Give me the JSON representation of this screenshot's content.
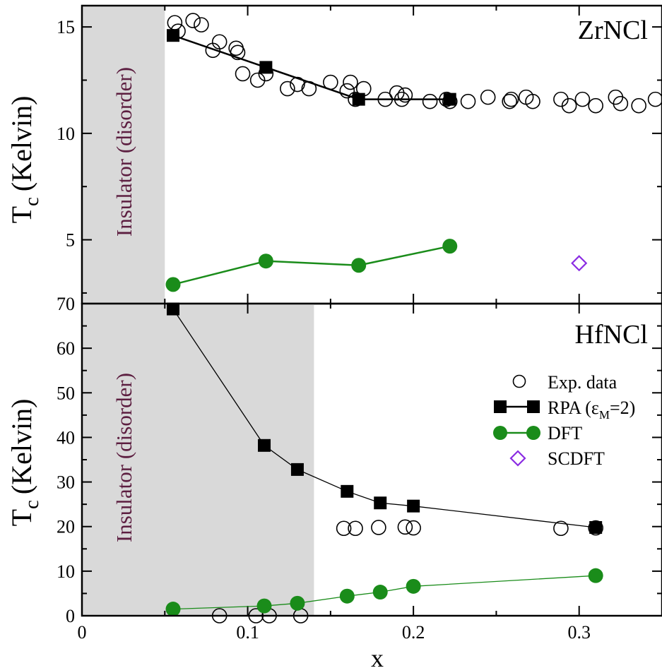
{
  "chart_data": [
    {
      "type": "scatter",
      "panel_label": "ZrNCl",
      "region_label": "Insulator (disorder)",
      "insulator_x_max": 0.05,
      "ylabel_main": "T",
      "ylabel_sub": "c",
      "ylabel_unit": "(Kelvin)",
      "xlim": [
        0,
        0.35
      ],
      "ylim": [
        2,
        16
      ],
      "yticks": [
        {
          "v": 5,
          "label": "5"
        },
        {
          "v": 10,
          "label": "10"
        },
        {
          "v": 15,
          "label": "15"
        }
      ],
      "series": [
        {
          "key": "exp",
          "marker": "open-circle",
          "color": "#000000",
          "x": [
            0.056,
            0.058,
            0.067,
            0.072,
            0.079,
            0.083,
            0.093,
            0.094,
            0.097,
            0.106,
            0.111,
            0.124,
            0.13,
            0.137,
            0.15,
            0.16,
            0.162,
            0.165,
            0.17,
            0.183,
            0.19,
            0.193,
            0.195,
            0.21,
            0.22,
            0.222,
            0.233,
            0.245,
            0.258,
            0.259,
            0.268,
            0.272,
            0.289,
            0.294,
            0.302,
            0.31,
            0.322,
            0.325,
            0.336,
            0.346
          ],
          "y": [
            15.2,
            14.8,
            15.3,
            15.1,
            13.9,
            14.3,
            14.0,
            13.8,
            12.8,
            12.5,
            12.8,
            12.1,
            12.3,
            12.1,
            12.4,
            12.0,
            12.4,
            11.6,
            12.1,
            11.6,
            11.9,
            11.6,
            11.8,
            11.5,
            11.6,
            11.5,
            11.5,
            11.7,
            11.5,
            11.6,
            11.7,
            11.5,
            11.6,
            11.3,
            11.6,
            11.3,
            11.7,
            11.4,
            11.3,
            11.6
          ]
        },
        {
          "key": "rpa",
          "marker": "filled-square",
          "color": "#000000",
          "line": true,
          "line_width": 2.5,
          "x": [
            0.055,
            0.111,
            0.167,
            0.222
          ],
          "y": [
            14.6,
            13.1,
            11.6,
            11.6
          ]
        },
        {
          "key": "dft",
          "marker": "filled-circle",
          "color": "#1a8c1a",
          "line": true,
          "line_width": 2.5,
          "x": [
            0.055,
            0.111,
            0.167,
            0.222
          ],
          "y": [
            2.9,
            4.0,
            3.8,
            4.7
          ]
        },
        {
          "key": "scdft",
          "marker": "open-diamond",
          "color": "#8a2be2",
          "x": [
            0.3
          ],
          "y": [
            3.9
          ]
        }
      ]
    },
    {
      "type": "scatter",
      "panel_label": "HfNCl",
      "region_label": "Insulator (disorder)",
      "insulator_x_max": 0.14,
      "ylabel_main": "T",
      "ylabel_sub": "c",
      "ylabel_unit": "(Kelvin)",
      "xlabel": "x",
      "xlim": [
        0,
        0.35
      ],
      "ylim": [
        0,
        70
      ],
      "yticks": [
        {
          "v": 0,
          "label": "0"
        },
        {
          "v": 10,
          "label": "10"
        },
        {
          "v": 20,
          "label": "20"
        },
        {
          "v": 30,
          "label": "30"
        },
        {
          "v": 40,
          "label": "40"
        },
        {
          "v": 50,
          "label": "50"
        },
        {
          "v": 60,
          "label": "60"
        },
        {
          "v": 70,
          "label": "70"
        }
      ],
      "xticks": [
        {
          "v": 0,
          "label": "0"
        },
        {
          "v": 0.1,
          "label": "0.1"
        },
        {
          "v": 0.2,
          "label": "0.2"
        },
        {
          "v": 0.3,
          "label": "0.3"
        }
      ],
      "series": [
        {
          "key": "exp",
          "marker": "open-circle",
          "color": "#000000",
          "x": [
            0.083,
            0.105,
            0.113,
            0.132,
            0.158,
            0.165,
            0.179,
            0.195,
            0.2,
            0.289,
            0.31
          ],
          "y": [
            0,
            0,
            0,
            0,
            19.6,
            19.6,
            19.8,
            19.9,
            19.7,
            19.6,
            19.7
          ]
        },
        {
          "key": "rpa",
          "marker": "filled-square",
          "color": "#000000",
          "line": true,
          "line_width": 1.3,
          "x": [
            0.055,
            0.11,
            0.13,
            0.16,
            0.18,
            0.2,
            0.31
          ],
          "y": [
            68.8,
            38.2,
            32.8,
            27.9,
            25.3,
            24.6,
            19.8
          ]
        },
        {
          "key": "dft",
          "marker": "filled-circle",
          "color": "#1a8c1a",
          "line": true,
          "line_width": 1.3,
          "x": [
            0.055,
            0.11,
            0.13,
            0.16,
            0.18,
            0.2,
            0.31
          ],
          "y": [
            1.5,
            2.2,
            2.8,
            4.4,
            5.3,
            6.6,
            9.0
          ]
        }
      ]
    }
  ],
  "legend": {
    "placement": "right-middle of lower panel",
    "entries": [
      {
        "key": "exp",
        "label": "Exp. data"
      },
      {
        "key": "rpa",
        "label_main": "RPA (ε",
        "label_sub": "M",
        "label_tail": "=2)"
      },
      {
        "key": "dft",
        "label": "DFT"
      },
      {
        "key": "scdft",
        "label": "SCDFT"
      }
    ]
  },
  "colors": {
    "insulator_shade": "#d9d9d9",
    "dft": "#1a8c1a",
    "scdft": "#8a2be2",
    "region_text": "#5c1e40"
  }
}
